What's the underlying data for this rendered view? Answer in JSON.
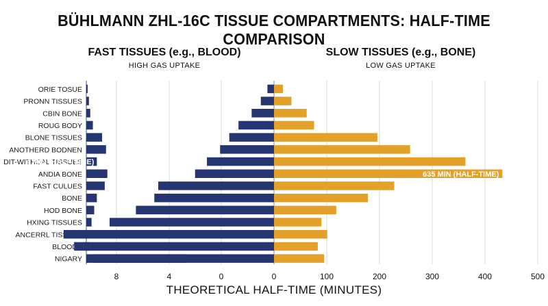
{
  "title": "BÜHLMANN ZHL-16C TISSUE COMPARTMENTS: HALF-TIME COMPARISON",
  "left_panel": {
    "heading": "FAST TISSUES (e.g., BLOOD)",
    "subheading": "HIGH GAS UPTAKE"
  },
  "right_panel": {
    "heading": "SLOW TISSUES (e.g., BONE)",
    "subheading": "LOW GAS UPTAKE"
  },
  "colors": {
    "fast": "#253572",
    "slow": "#e4a12a",
    "grid": "#d9d9d9"
  },
  "chart_data": {
    "type": "bar",
    "title": "BÜHLMANN ZHL-16C TISSUE COMPARTMENTS: HALF-TIME COMPARISON",
    "xlabel": "THEORETICAL HALF-TIME (MINUTES)",
    "ylabel": "",
    "categories": [
      "ORIE TOSUE",
      "PRONN TISSUES",
      "CBIN BONE",
      "ROUG BODY",
      "BLONE TISSUES",
      "ANOTHERD BODNEN",
      "DIT-WITHOAL TISSUES",
      "ANDIA BONE",
      "FAST CULUES",
      "BONE",
      "HOD BONE",
      "HXING TISSUES",
      "ANCERRL TISSUES",
      "BLOODS",
      "NIGARY"
    ],
    "left_axis": {
      "ticks": [
        8,
        4,
        0
      ],
      "range": [
        12,
        0
      ]
    },
    "right_axis": {
      "ticks": [
        0,
        100,
        200,
        300,
        400,
        500
      ],
      "range": [
        0,
        500
      ]
    },
    "series": [
      {
        "values": [
          0.1,
          0.2,
          0.3,
          0.5,
          1.2,
          1.5,
          0.8,
          1.6,
          1.4,
          0.8,
          0.6,
          0.4,
          0.35,
          0.2,
          7.6
        ]
      },
      {
        "values": [
          0.5,
          1.0,
          1.7,
          2.7,
          3.4,
          4.1,
          5.1,
          6.0,
          8.8,
          9.1,
          10.5,
          12.5,
          16.0,
          15.2,
          13.8
        ]
      },
      {
        "values": [
          17,
          33,
          62,
          76,
          196,
          258,
          363,
          433,
          228,
          178,
          118,
          90,
          101,
          83,
          95
        ]
      }
    ],
    "annotations": [
      "4 MIN (HALF-TIME)",
      "635 MIN (HALF-TIME)"
    ]
  }
}
